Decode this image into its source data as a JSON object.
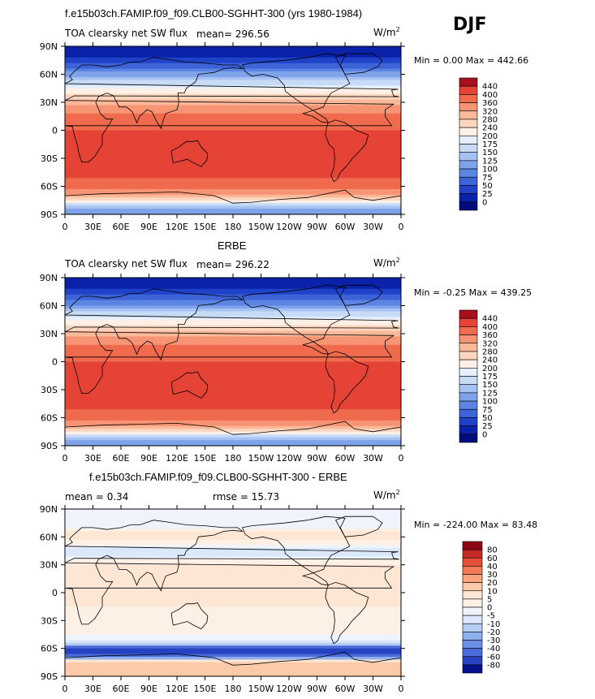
{
  "season": "DJF",
  "panels": [
    {
      "title": "f.e15b03ch.FAMIP.f09_f09.CLB00-SGHHT-300 (yrs 1980-1984)",
      "left_label": "TOA clearsky net SW flux",
      "mean_label": "mean= 296.56",
      "units": "W/m2",
      "minmax": "Min =    0.00 Max = 442.66"
    },
    {
      "title": "ERBE",
      "left_label": "TOA clearsky net SW flux",
      "mean_label": "mean= 296.22",
      "units": "W/m2",
      "minmax": "Min =  -0.25 Max = 439.25"
    },
    {
      "title": "f.e15b03ch.FAMIP.f09_f09.CLB00-SGHHT-300 - ERBE",
      "left_label": "mean =    0.34",
      "mean_label": "rmse =   15.73",
      "units": "W/m2",
      "minmax": "Min = -224.00 Max =  83.48"
    }
  ],
  "axes": {
    "lat_ticks": [
      "90N",
      "60N",
      "30N",
      "0",
      "30S",
      "60S",
      "90S"
    ],
    "lon_ticks": [
      "0",
      "30E",
      "60E",
      "90E",
      "120E",
      "150E",
      "180",
      "150W",
      "120W",
      "90W",
      "60W",
      "30W",
      "0"
    ]
  },
  "chart_data": [
    {
      "type": "heatmap",
      "title": "f.e15b03ch.FAMIP.f09_f09.CLB00-SGHHT-300 (yrs 1980-1984)",
      "variable": "TOA clearsky net SW flux",
      "units": "W/m2",
      "mean": 296.56,
      "min": 0.0,
      "max": 442.66,
      "colorbar_levels": [
        "440",
        "400",
        "360",
        "320",
        "280",
        "240",
        "200",
        "175",
        "150",
        "125",
        "100",
        "75",
        "50",
        "25",
        "0"
      ],
      "zonal_profile": {
        "lat": [
          90,
          75,
          60,
          45,
          30,
          15,
          0,
          -15,
          -30,
          -45,
          -60,
          -70,
          -80,
          -90
        ],
        "value": [
          0,
          30,
          110,
          200,
          300,
          370,
          400,
          420,
          430,
          410,
          380,
          300,
          150,
          100
        ]
      }
    },
    {
      "type": "heatmap",
      "title": "ERBE",
      "variable": "TOA clearsky net SW flux",
      "units": "W/m2",
      "mean": 296.22,
      "min": -0.25,
      "max": 439.25,
      "colorbar_levels": [
        "440",
        "400",
        "360",
        "320",
        "280",
        "240",
        "200",
        "175",
        "150",
        "125",
        "100",
        "75",
        "50",
        "25",
        "0"
      ],
      "zonal_profile": {
        "lat": [
          90,
          75,
          60,
          45,
          30,
          15,
          0,
          -15,
          -30,
          -45,
          -60,
          -70,
          -80,
          -90
        ],
        "value": [
          0,
          30,
          100,
          200,
          300,
          370,
          400,
          420,
          430,
          410,
          380,
          300,
          150,
          100
        ]
      }
    },
    {
      "type": "heatmap",
      "title": "f.e15b03ch.FAMIP.f09_f09.CLB00-SGHHT-300 - ERBE",
      "variable": "difference",
      "units": "W/m2",
      "mean": 0.34,
      "rmse": 15.73,
      "min": -224.0,
      "max": 83.48,
      "colorbar_levels": [
        "80",
        "60",
        "40",
        "30",
        "20",
        "10",
        "5",
        "0",
        "-5",
        "-10",
        "-20",
        "-30",
        "-40",
        "-60",
        "-80"
      ],
      "zonal_profile": {
        "lat": [
          90,
          75,
          60,
          45,
          30,
          15,
          0,
          -15,
          -30,
          -45,
          -55,
          -60,
          -65,
          -75,
          -90
        ],
        "value": [
          0,
          -5,
          10,
          -10,
          5,
          5,
          5,
          5,
          0,
          0,
          -10,
          -60,
          -80,
          20,
          10
        ]
      }
    }
  ],
  "colors": {
    "warm": [
      "#fef0e6",
      "#fcd6be",
      "#fbb99a",
      "#f79474",
      "#f06a4e",
      "#e54336",
      "#cf2224",
      "#a80e1b",
      "#820010"
    ],
    "cool": [
      "#e6effc",
      "#c7dbf7",
      "#a5c2f2",
      "#7ea3ea",
      "#5c84e2",
      "#3c63d8",
      "#1f42c8",
      "#0a22aa",
      "#000e7d"
    ],
    "diff_warm": [
      "#fde6d4",
      "#fcc9a9",
      "#f9a47d",
      "#f37b58",
      "#e4503a",
      "#c52a26",
      "#8e0514"
    ],
    "diff_cool": [
      "#dbe8fb",
      "#b5cdf5",
      "#8fb0ee",
      "#6a8fe6",
      "#4a6bd9",
      "#2742c0",
      "#05128c"
    ]
  }
}
